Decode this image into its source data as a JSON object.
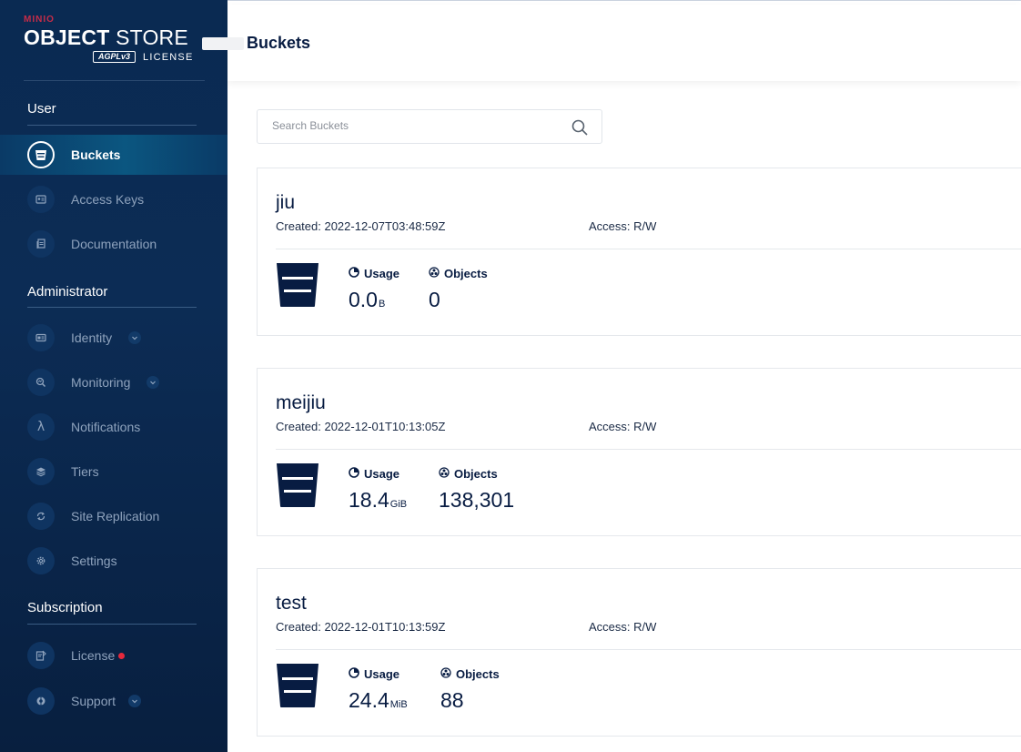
{
  "brand": {
    "minio": "MINIO",
    "object_bold": "OBJECT",
    "object_rest": "STORE",
    "agpl": "AGPLv3",
    "license_word": "LICENSE"
  },
  "sidebar": {
    "sections": [
      {
        "title": "User"
      },
      {
        "title": "Administrator"
      },
      {
        "title": "Subscription"
      }
    ],
    "items": [
      {
        "label": "Buckets",
        "icon": "bucket-icon",
        "active": true
      },
      {
        "label": "Access Keys",
        "icon": "access-keys-icon"
      },
      {
        "label": "Documentation",
        "icon": "documentation-icon"
      },
      {
        "label": "Identity",
        "icon": "identity-icon",
        "expandable": true
      },
      {
        "label": "Monitoring",
        "icon": "monitoring-icon",
        "expandable": true
      },
      {
        "label": "Notifications",
        "icon": "lambda-icon"
      },
      {
        "label": "Tiers",
        "icon": "tiers-icon"
      },
      {
        "label": "Site Replication",
        "icon": "site-replication-icon"
      },
      {
        "label": "Settings",
        "icon": "gear-icon"
      },
      {
        "label": "License",
        "icon": "license-icon",
        "alert": true
      },
      {
        "label": "Support",
        "icon": "support-icon",
        "expandable": true
      }
    ]
  },
  "header": {
    "title": "Buckets"
  },
  "search": {
    "placeholder": "Search Buckets"
  },
  "buckets": [
    {
      "name": "jiu",
      "created": "Created: 2022-12-07T03:48:59Z",
      "access": "Access: R/W",
      "usage_label": "Usage",
      "usage_value": "0.0",
      "usage_unit": "B",
      "objects_label": "Objects",
      "objects_value": "0"
    },
    {
      "name": "meijiu",
      "created": "Created: 2022-12-01T10:13:05Z",
      "access": "Access: R/W",
      "usage_label": "Usage",
      "usage_value": "18.4",
      "usage_unit": "GiB",
      "objects_label": "Objects",
      "objects_value": "138,301"
    },
    {
      "name": "test",
      "created": "Created: 2022-12-01T10:13:59Z",
      "access": "Access: R/W",
      "usage_label": "Usage",
      "usage_value": "24.4",
      "usage_unit": "MiB",
      "objects_label": "Objects",
      "objects_value": "88"
    }
  ],
  "colors": {
    "sidebar_bg": "#0a2a52",
    "accent": "#081c42",
    "alert": "#e5293c"
  }
}
